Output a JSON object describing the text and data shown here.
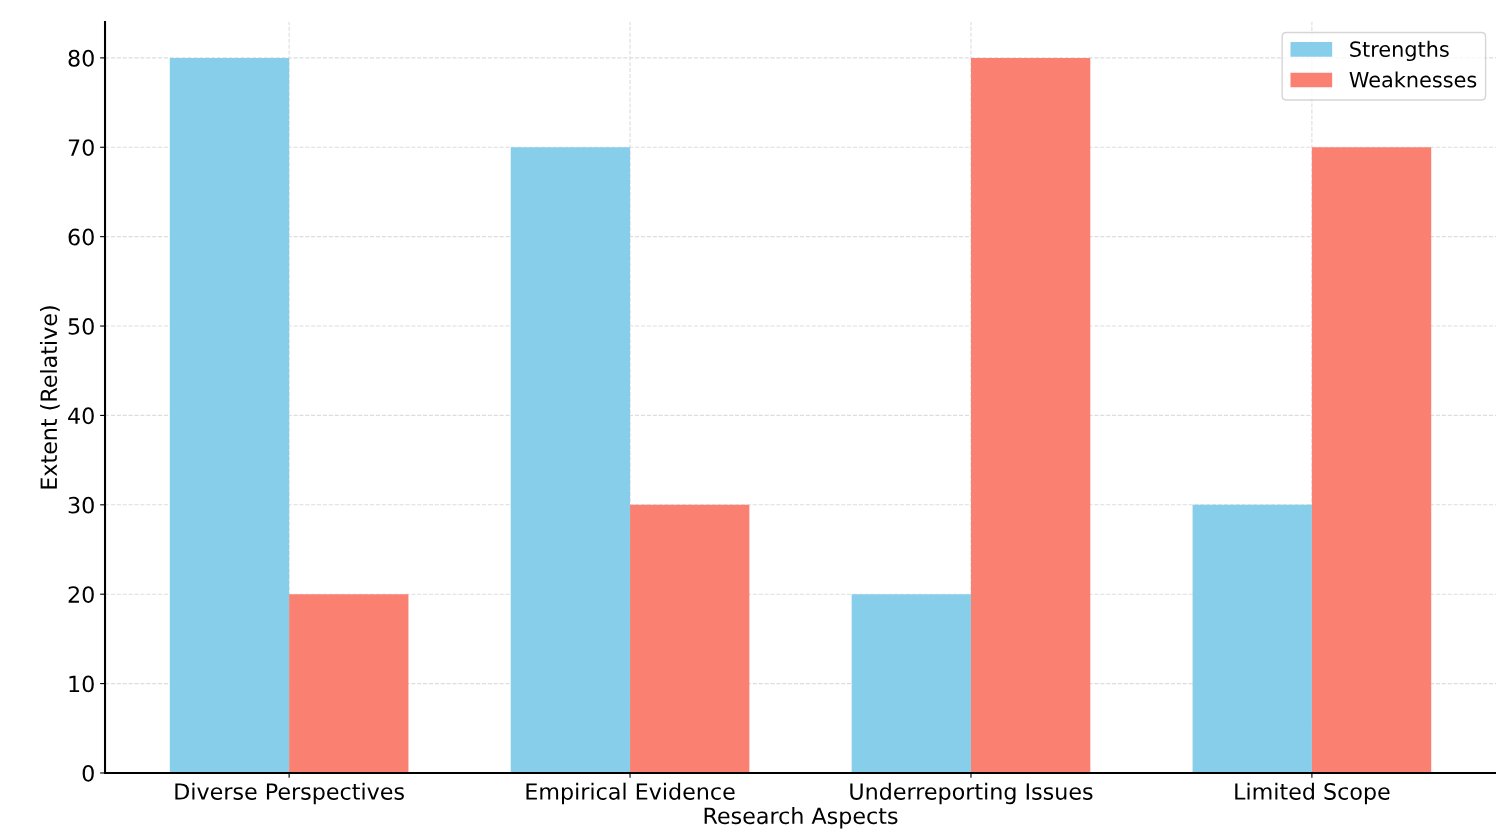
{
  "chart_data": {
    "type": "bar",
    "xlabel": "Research Aspects",
    "ylabel": "Extent (Relative)",
    "categories": [
      "Diverse Perspectives",
      "Empirical Evidence",
      "Underreporting Issues",
      "Limited Scope"
    ],
    "series": [
      {
        "name": "Strengths",
        "color": "#87ceeb",
        "values": [
          80,
          70,
          20,
          30
        ]
      },
      {
        "name": "Weaknesses",
        "color": "#fa8072",
        "values": [
          20,
          30,
          80,
          70
        ]
      }
    ],
    "ylim": [
      0,
      84
    ],
    "yticks": [
      0,
      10,
      20,
      30,
      40,
      50,
      60,
      70,
      80
    ],
    "grid": true,
    "legend": "top right"
  }
}
